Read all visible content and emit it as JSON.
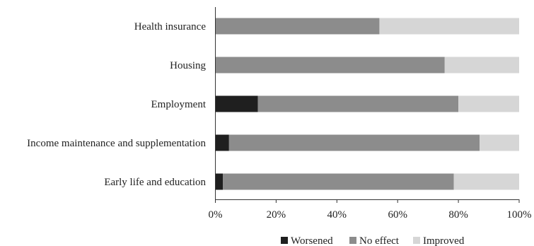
{
  "chart_data": {
    "type": "bar",
    "orientation": "horizontal",
    "stacked": true,
    "percent": true,
    "title": "",
    "xlabel": "",
    "ylabel": "",
    "categories": [
      "Health insurance",
      "Housing",
      "Employment",
      "Income maintenance and supplementation",
      "Early life and education"
    ],
    "series": [
      {
        "name": "Worsened",
        "color": "#1f1f1f",
        "values": [
          0,
          0,
          14,
          4.5,
          2.5
        ]
      },
      {
        "name": "No effect",
        "color": "#8c8c8c",
        "values": [
          54,
          75.5,
          66,
          82.5,
          76
        ]
      },
      {
        "name": "Improved",
        "color": "#d6d6d6",
        "values": [
          46,
          24.5,
          20,
          13,
          21.5
        ]
      }
    ],
    "xlim": [
      0,
      100
    ],
    "x_ticks": [
      "0%",
      "20%",
      "40%",
      "60%",
      "80%",
      "100%"
    ],
    "grid": false,
    "legend_position": "bottom"
  }
}
